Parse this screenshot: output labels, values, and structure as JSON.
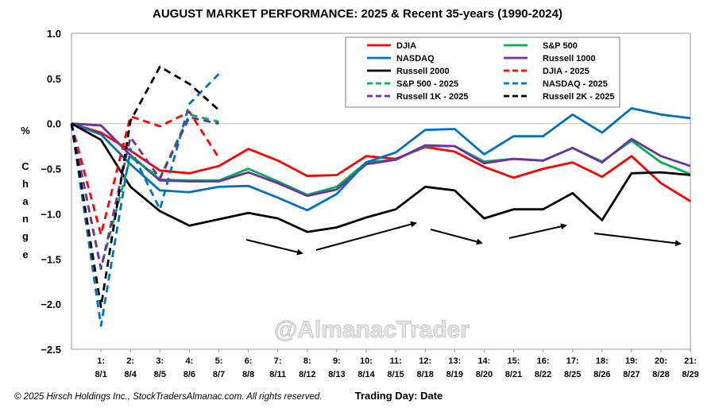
{
  "chart_data": {
    "type": "line",
    "title": "AUGUST MARKET PERFORMANCE: 2025 & Recent 35-years (1990-2024)",
    "ylabel": "% Change",
    "ylabel_chars": [
      "%",
      "C",
      "h",
      "a",
      "n",
      "g",
      "e"
    ],
    "xlabel": "Trading Day: Date",
    "ylim": [
      -2.5,
      1.0
    ],
    "yticks": [
      1.0,
      0.5,
      0.0,
      -0.5,
      -1.0,
      -1.5,
      -2.0,
      -2.5
    ],
    "ytick_labels": [
      "1.0",
      "0.5",
      "0.0",
      "−0.5",
      "−1.0",
      "−1.5",
      "−2.0",
      "−2.5"
    ],
    "x_day_labels": [
      "1:",
      "2:",
      "3:",
      "4:",
      "5:",
      "6:",
      "7:",
      "8:",
      "9:",
      "10:",
      "11:",
      "12:",
      "13:",
      "14:",
      "15:",
      "16:",
      "17:",
      "18:",
      "19:",
      "20:",
      "21:"
    ],
    "x_date_labels": [
      "8/1",
      "8/4",
      "8/5",
      "8/6",
      "8/7",
      "8/8",
      "8/11",
      "8/12",
      "8/13",
      "8/14",
      "8/15",
      "8/18",
      "8/19",
      "8/20",
      "8/21",
      "8/22",
      "8/25",
      "8/26",
      "8/27",
      "8/28",
      "8/29"
    ],
    "series": [
      {
        "name": "DJIA",
        "color": "#ff0000",
        "dashed": false,
        "values": [
          0.0,
          -0.1,
          -0.3,
          -0.52,
          -0.55,
          -0.47,
          -0.28,
          -0.41,
          -0.58,
          -0.57,
          -0.36,
          -0.39,
          -0.26,
          -0.31,
          -0.48,
          -0.6,
          -0.5,
          -0.43,
          -0.59,
          -0.36,
          -0.66,
          -0.86
        ]
      },
      {
        "name": "S&P 500",
        "color": "#00b050",
        "dashed": false,
        "values": [
          0.0,
          -0.02,
          -0.35,
          -0.62,
          -0.63,
          -0.63,
          -0.5,
          -0.64,
          -0.79,
          -0.7,
          -0.43,
          -0.4,
          -0.25,
          -0.25,
          -0.42,
          -0.39,
          -0.41,
          -0.27,
          -0.42,
          -0.19,
          -0.43,
          -0.56
        ]
      },
      {
        "name": "NASDAQ",
        "color": "#0070c0",
        "dashed": false,
        "values": [
          0.0,
          -0.12,
          -0.45,
          -0.74,
          -0.76,
          -0.7,
          -0.69,
          -0.82,
          -0.96,
          -0.78,
          -0.43,
          -0.32,
          -0.07,
          -0.06,
          -0.34,
          -0.14,
          -0.14,
          0.1,
          -0.1,
          0.17,
          0.1,
          0.06
        ]
      },
      {
        "name": "Russell 1000",
        "color": "#7030a0",
        "dashed": false,
        "values": [
          0.0,
          -0.02,
          -0.35,
          -0.63,
          -0.64,
          -0.64,
          -0.54,
          -0.66,
          -0.8,
          -0.73,
          -0.45,
          -0.4,
          -0.24,
          -0.25,
          -0.44,
          -0.39,
          -0.41,
          -0.27,
          -0.43,
          -0.17,
          -0.36,
          -0.47
        ]
      },
      {
        "name": "Russell 2000",
        "color": "#000000",
        "dashed": false,
        "values": [
          0.0,
          -0.18,
          -0.7,
          -0.97,
          -1.13,
          -1.06,
          -0.99,
          -1.05,
          -1.2,
          -1.15,
          -1.04,
          -0.95,
          -0.7,
          -0.74,
          -1.05,
          -0.95,
          -0.95,
          -0.77,
          -1.07,
          -0.55,
          -0.54,
          -0.57
        ]
      },
      {
        "name": "DJIA - 2025",
        "color": "#ff0000",
        "dashed": true,
        "values": [
          0.0,
          -1.23,
          0.08,
          -0.03,
          0.13,
          -0.38
        ]
      },
      {
        "name": "S&P 500 - 2025",
        "color": "#00b050",
        "dashed": true,
        "values": [
          0.0,
          -1.6,
          -0.37,
          -0.6,
          0.1,
          0.02
        ]
      },
      {
        "name": "NASDAQ - 2025",
        "color": "#0070c0",
        "dashed": true,
        "values": [
          0.0,
          -2.24,
          -0.28,
          -0.95,
          0.22,
          0.55
        ]
      },
      {
        "name": "Russell 1K - 2025",
        "color": "#7030a0",
        "dashed": true,
        "values": [
          0.0,
          -1.61,
          -0.15,
          -0.61,
          0.07,
          0.0
        ]
      },
      {
        "name": "Russell 2K - 2025",
        "color": "#000000",
        "dashed": true,
        "values": [
          0.0,
          -2.03,
          0.03,
          0.63,
          0.44,
          0.15
        ]
      }
    ],
    "legend_position": "top-center",
    "watermark": "@AlmanacTrader",
    "footer": "© 2025 Hirsch Holdings Inc., StockTradersAlmanac.com. All rights reserved."
  }
}
